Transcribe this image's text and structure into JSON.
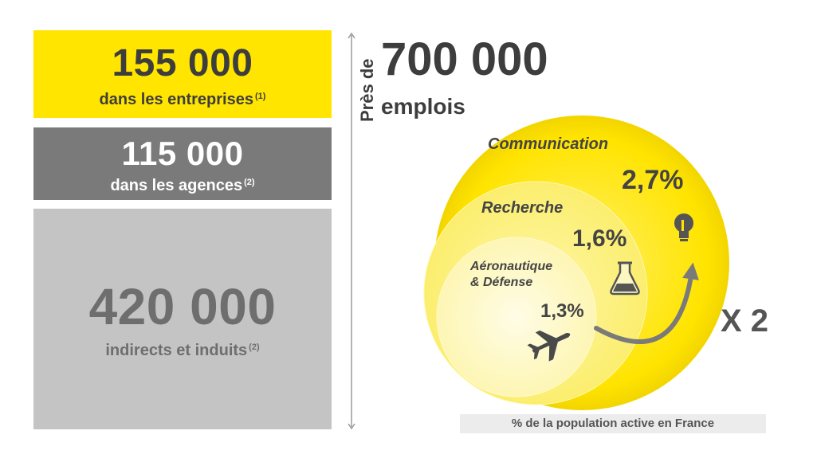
{
  "boxes": [
    {
      "value": "155 000",
      "label": "dans les entreprises",
      "note": "(1)"
    },
    {
      "value": "115 000",
      "label": "dans les agences",
      "note": "(2)"
    },
    {
      "value": "420 000",
      "label": "indirects et induits",
      "note": "(2)"
    }
  ],
  "total": {
    "prefix": "Près de",
    "value": "700 000",
    "unit": "emplois"
  },
  "circles": [
    {
      "label": "Communication",
      "percent": "2,7%",
      "icon": "lightbulb-icon"
    },
    {
      "label": "Recherche",
      "percent": "1,6%",
      "icon": "flask-icon"
    },
    {
      "label_line1": "Aéronautique",
      "label_line2": "& Défense",
      "percent": "1,3%",
      "icon": "airplane-icon"
    }
  ],
  "multiplier": "X 2",
  "footnote": "% de la population active en France",
  "colors": {
    "yellow": "#ffe500",
    "dark_gray": "#7a7a7a",
    "light_gray": "#c4c4c4",
    "text_dark": "#3d3d3d"
  }
}
